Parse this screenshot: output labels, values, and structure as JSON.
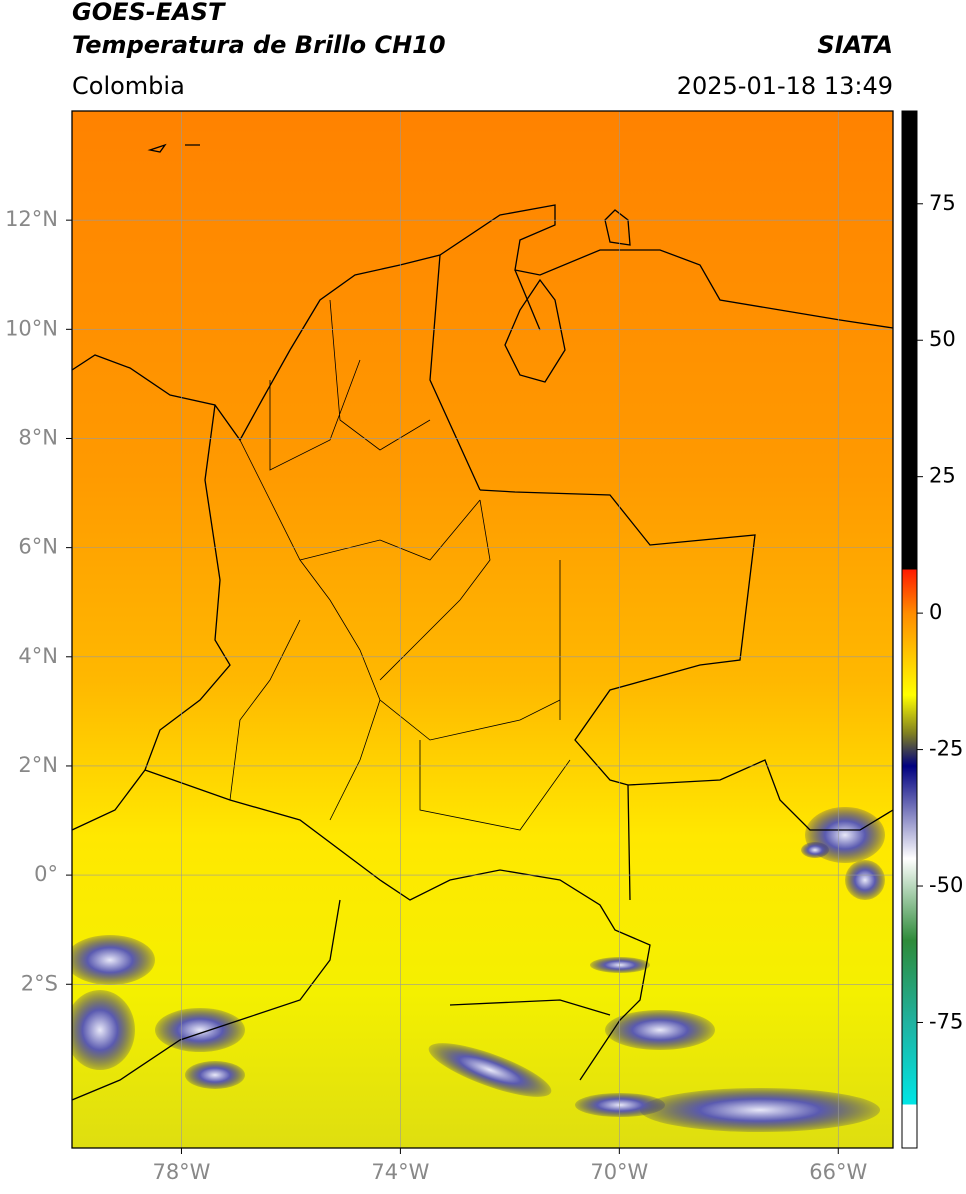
{
  "header": {
    "title": "GOES-EAST",
    "subtitle": "Temperatura de Brillo CH10",
    "source": "SIATA",
    "region": "Colombia",
    "timestamp": "2025-01-18 13:49"
  },
  "map": {
    "xlim": [
      -80,
      -65
    ],
    "ylim": [
      -5,
      14
    ],
    "xticks": [
      {
        "value": -78,
        "label": "78°W"
      },
      {
        "value": -74,
        "label": "74°W"
      },
      {
        "value": -70,
        "label": "70°W"
      },
      {
        "value": -66,
        "label": "66°W"
      }
    ],
    "yticks": [
      {
        "value": 12,
        "label": "12°N"
      },
      {
        "value": 10,
        "label": "10°N"
      },
      {
        "value": 8,
        "label": "8°N"
      },
      {
        "value": 6,
        "label": "6°N"
      },
      {
        "value": 4,
        "label": "4°N"
      },
      {
        "value": 2,
        "label": "2°N"
      },
      {
        "value": 0,
        "label": "0°"
      },
      {
        "value": -2,
        "label": "2°S"
      }
    ],
    "grid": true
  },
  "colorbar": {
    "lim": [
      -98,
      92
    ],
    "ticks": [
      75,
      50,
      25,
      0,
      -25,
      -50,
      -75
    ],
    "colors": [
      {
        "value": 92,
        "color": "#000000"
      },
      {
        "value": 8,
        "color": "#000000"
      },
      {
        "value": 8,
        "color": "#ff1a00"
      },
      {
        "value": 0,
        "color": "#ff8c00"
      },
      {
        "value": -15,
        "color": "#ffff00"
      },
      {
        "value": -22,
        "color": "#808020"
      },
      {
        "value": -28,
        "color": "#000080"
      },
      {
        "value": -45,
        "color": "#ffffff"
      },
      {
        "value": -60,
        "color": "#2e8b3a"
      },
      {
        "value": -75,
        "color": "#20b2a0"
      },
      {
        "value": -90,
        "color": "#00e5e5"
      },
      {
        "value": -90,
        "color": "#ffffff"
      },
      {
        "value": -98,
        "color": "#ffffff"
      }
    ]
  }
}
